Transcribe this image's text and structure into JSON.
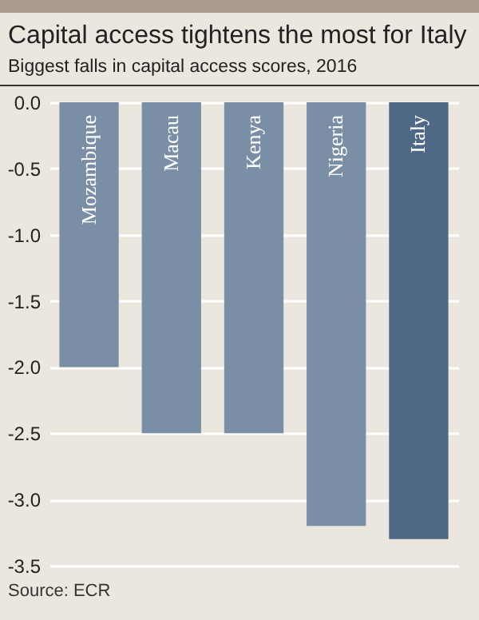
{
  "chart_data": {
    "type": "bar",
    "title": "Capital access tightens the most for Italy",
    "subtitle": "Biggest falls in capital access scores, 2016",
    "categories": [
      "Mozambique",
      "Macau",
      "Kenya",
      "Nigeria",
      "Italy"
    ],
    "values": [
      -2.0,
      -2.5,
      -2.5,
      -3.2,
      -3.3
    ],
    "colors": [
      "#7a8fa6",
      "#7a8fa6",
      "#7a8fa6",
      "#7a8fa6",
      "#4f6885"
    ],
    "ylim": [
      -3.5,
      0
    ],
    "yticks": [
      {
        "value": 0,
        "label": "0.0"
      },
      {
        "value": -0.5,
        "label": "-0.5"
      },
      {
        "value": -1.0,
        "label": "-1.0"
      },
      {
        "value": -1.5,
        "label": "-1.5"
      },
      {
        "value": -2.0,
        "label": "-2.0"
      },
      {
        "value": -2.5,
        "label": "-2.5"
      },
      {
        "value": -3.0,
        "label": "-3.0"
      },
      {
        "value": -3.5,
        "label": "-3.5"
      }
    ],
    "grid": "y",
    "annotations": [
      "Source: ECR"
    ]
  }
}
